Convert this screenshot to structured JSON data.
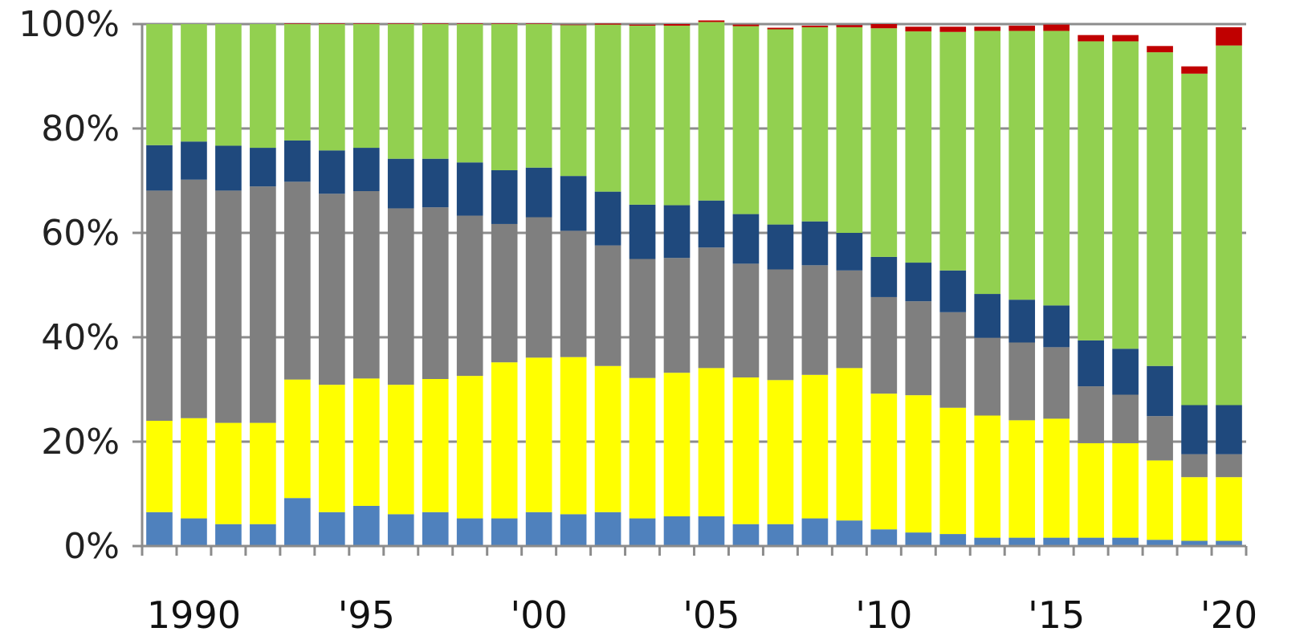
{
  "chart_data": {
    "type": "bar",
    "stacked": true,
    "normalized": true,
    "title": "",
    "xlabel": "",
    "ylabel": "",
    "ylim": [
      0,
      100
    ],
    "grid": true,
    "legend": "none",
    "y_tick_labels": [
      "0%",
      "20%",
      "40%",
      "60%",
      "80%",
      "100%"
    ],
    "y_tick_values": [
      0,
      20,
      40,
      60,
      80,
      100
    ],
    "x_tick_labels": [
      {
        "label": "1990",
        "year": 1990
      },
      {
        "label": "'95",
        "year": 1995
      },
      {
        "label": "'00",
        "year": 2000
      },
      {
        "label": "'05",
        "year": 2005
      },
      {
        "label": "'10",
        "year": 2010
      },
      {
        "label": "'15",
        "year": 2015
      },
      {
        "label": "'20",
        "year": 2020
      }
    ],
    "categories": [
      "1989",
      "1990",
      "1991",
      "1992",
      "1993",
      "1994",
      "1995",
      "1996",
      "1997",
      "1998",
      "1999",
      "2000",
      "2001",
      "2002",
      "2003",
      "2004",
      "2005",
      "2006",
      "2007",
      "2008",
      "2009",
      "2010",
      "2011",
      "2012",
      "2013",
      "2014",
      "2015",
      "2016",
      "2017",
      "2018",
      "2019",
      "2020"
    ],
    "series": [
      {
        "color": "#4f81bd",
        "values": [
          6.5,
          5.3,
          4.2,
          4.2,
          9.2,
          6.5,
          7.7,
          6.1,
          6.5,
          5.3,
          5.3,
          6.5,
          6.1,
          6.5,
          5.3,
          5.7,
          5.7,
          4.2,
          4.2,
          5.3,
          4.9,
          3.2,
          2.6,
          2.3,
          1.6,
          1.6,
          1.6,
          1.6,
          1.6,
          1.2,
          1.0,
          1.0
        ]
      },
      {
        "color": "#ffff00",
        "values": [
          17.5,
          19.2,
          19.4,
          19.4,
          22.7,
          24.4,
          24.4,
          24.8,
          25.5,
          27.3,
          29.9,
          29.6,
          30.1,
          28.0,
          26.9,
          27.5,
          28.4,
          28.1,
          27.6,
          27.5,
          29.2,
          26.0,
          26.3,
          24.2,
          23.4,
          22.5,
          22.8,
          18.1,
          18.1,
          15.2,
          12.2,
          12.2
        ]
      },
      {
        "color": "#7f7f7f",
        "values": [
          44.1,
          45.7,
          44.5,
          45.3,
          37.9,
          36.6,
          35.9,
          33.8,
          32.9,
          30.7,
          26.5,
          26.9,
          24.2,
          23.1,
          22.8,
          22.0,
          23.1,
          21.8,
          21.2,
          21.0,
          18.7,
          18.5,
          18.0,
          18.3,
          14.9,
          14.9,
          13.7,
          10.9,
          9.3,
          8.5,
          4.4,
          4.4
        ]
      },
      {
        "color": "#1f497d",
        "values": [
          8.7,
          7.3,
          8.6,
          7.4,
          7.9,
          8.3,
          8.3,
          9.5,
          9.3,
          10.2,
          10.3,
          9.5,
          10.5,
          10.3,
          10.4,
          10.1,
          9.0,
          9.5,
          8.6,
          8.4,
          7.2,
          7.7,
          7.4,
          8.0,
          8.4,
          8.2,
          8.0,
          8.8,
          8.8,
          9.6,
          9.4,
          9.4
        ]
      },
      {
        "color": "#92d050",
        "values": [
          23.2,
          22.5,
          23.3,
          23.7,
          22.3,
          24.2,
          23.7,
          25.8,
          25.8,
          26.5,
          28.0,
          27.5,
          28.9,
          32.0,
          34.3,
          34.4,
          34.2,
          36.0,
          37.4,
          37.2,
          39.4,
          43.8,
          44.3,
          45.7,
          50.4,
          51.5,
          52.6,
          57.3,
          58.9,
          60.1,
          63.5,
          68.9
        ]
      },
      {
        "color": "#c00000",
        "values": [
          0,
          0,
          0,
          0,
          0.1,
          0.1,
          0.1,
          0.1,
          0.1,
          0.1,
          0.1,
          0.1,
          0.1,
          0.2,
          0.2,
          0.3,
          0.3,
          0.3,
          0.3,
          0.3,
          0.4,
          0.8,
          0.9,
          1.0,
          0.8,
          1.0,
          1.2,
          1.2,
          1.2,
          1.2,
          1.4,
          3.5
        ]
      }
    ]
  }
}
